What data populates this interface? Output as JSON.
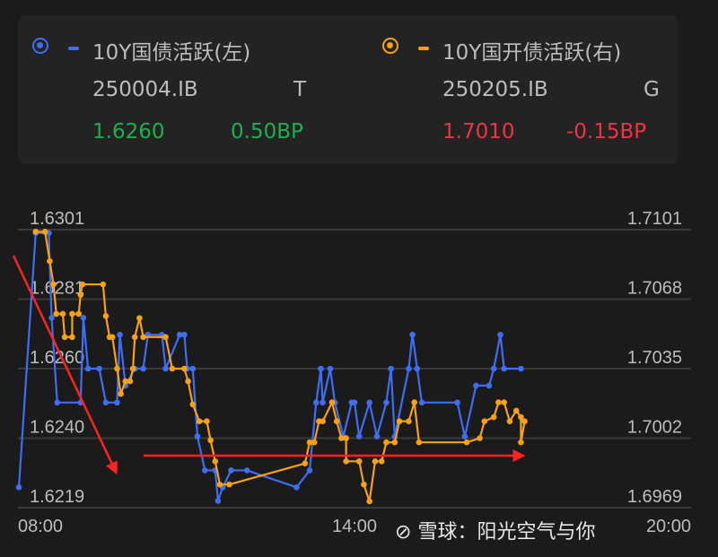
{
  "legend": [
    {
      "name": "10Y国债活跃(左)",
      "code": "250004.IB",
      "tag": "T",
      "value": "1.6260",
      "change": "0.50BP",
      "color": "#3f6df3",
      "value_color": "#1fae4f"
    },
    {
      "name": "10Y国开债活跃(右)",
      "code": "250205.IB",
      "tag": "G",
      "value": "1.7010",
      "change": "-0.15BP",
      "color": "#f6a116",
      "value_color": "#ee3346"
    }
  ],
  "watermark": "雪球：阳光空气与你",
  "chart_data": {
    "type": "line",
    "x_range": [
      "08:00",
      "20:00"
    ],
    "x_ticks": [
      "08:00",
      "14:00",
      "20:00"
    ],
    "y_left": {
      "range": [
        1.6219,
        1.6301
      ],
      "ticks": [
        "1.6301",
        "1.6281",
        "1.6260",
        "1.6240",
        "1.6219"
      ]
    },
    "y_right": {
      "range": [
        1.6969,
        1.7101
      ],
      "ticks": [
        "1.7101",
        "1.7068",
        "1.7035",
        "1.7002",
        "1.6969"
      ]
    },
    "grid": true,
    "markers": true,
    "annotations": [
      {
        "type": "arrow",
        "color": "#ff2020",
        "direction": "down-right"
      },
      {
        "type": "arrow",
        "color": "#ff2020",
        "direction": "right"
      }
    ],
    "series": [
      {
        "name": "10Y国债活跃(左)",
        "axis": "left",
        "color": "#3f6df3",
        "points": [
          [
            "08:01",
            1.6225
          ],
          [
            "08:19",
            1.63
          ],
          [
            "08:33",
            1.63
          ],
          [
            "08:36",
            1.6275
          ],
          [
            "08:42",
            1.625
          ],
          [
            "09:07",
            1.625
          ],
          [
            "09:10",
            1.6275
          ],
          [
            "09:15",
            1.626
          ],
          [
            "09:27",
            1.626
          ],
          [
            "09:34",
            1.625
          ],
          [
            "09:46",
            1.625
          ],
          [
            "09:49",
            1.627
          ],
          [
            "09:55",
            1.6255
          ],
          [
            "10:05",
            1.626
          ],
          [
            "10:14",
            1.626
          ],
          [
            "10:19",
            1.627
          ],
          [
            "10:34",
            1.627
          ],
          [
            "10:38",
            1.626
          ],
          [
            "10:53",
            1.627
          ],
          [
            "10:58",
            1.627
          ],
          [
            "11:01",
            1.626
          ],
          [
            "11:07",
            1.626
          ],
          [
            "11:12",
            1.624
          ],
          [
            "11:20",
            1.623
          ],
          [
            "11:31",
            1.623
          ],
          [
            "11:34",
            1.6221
          ],
          [
            "11:39",
            1.6225
          ],
          [
            "11:48",
            1.623
          ],
          [
            "12:05",
            1.623
          ],
          [
            "12:58",
            1.6225
          ],
          [
            "13:12",
            1.623
          ],
          [
            "13:19",
            1.625
          ],
          [
            "13:24",
            1.626
          ],
          [
            "13:26",
            1.625
          ],
          [
            "13:34",
            1.626
          ],
          [
            "13:39",
            1.625
          ],
          [
            "13:48",
            1.624
          ],
          [
            "13:57",
            1.625
          ],
          [
            "14:00",
            1.625
          ],
          [
            "14:05",
            1.624
          ],
          [
            "14:16",
            1.625
          ],
          [
            "14:24",
            1.624
          ],
          [
            "14:34",
            1.625
          ],
          [
            "14:39",
            1.626
          ],
          [
            "14:43",
            1.624
          ],
          [
            "14:58",
            1.626
          ],
          [
            "15:02",
            1.627
          ],
          [
            "15:07",
            1.626
          ],
          [
            "15:12",
            1.625
          ],
          [
            "15:50",
            1.625
          ],
          [
            "15:58",
            1.624
          ],
          [
            "16:10",
            1.6255
          ],
          [
            "16:24",
            1.6255
          ],
          [
            "16:29",
            1.626
          ],
          [
            "16:36",
            1.627
          ],
          [
            "16:40",
            1.626
          ],
          [
            "16:58",
            1.626
          ]
        ]
      },
      {
        "name": "10Y国开债活跃(右)",
        "axis": "right",
        "color": "#f6a116",
        "points": [
          [
            "08:19",
            1.71
          ],
          [
            "08:29",
            1.71
          ],
          [
            "08:34",
            1.7086
          ],
          [
            "08:38",
            1.7075
          ],
          [
            "08:41",
            1.7061
          ],
          [
            "08:48",
            1.7061
          ],
          [
            "08:50",
            1.705
          ],
          [
            "08:58",
            1.705
          ],
          [
            "08:58",
            1.7061
          ],
          [
            "09:05",
            1.7061
          ],
          [
            "09:07",
            1.707
          ],
          [
            "09:09",
            1.7075
          ],
          [
            "09:31",
            1.7075
          ],
          [
            "09:34",
            1.706
          ],
          [
            "09:38",
            1.705
          ],
          [
            "09:41",
            1.705
          ],
          [
            "09:46",
            1.7035
          ],
          [
            "09:50",
            1.7023
          ],
          [
            "09:55",
            1.7029
          ],
          [
            "10:00",
            1.7029
          ],
          [
            "10:03",
            1.7035
          ],
          [
            "10:05",
            1.705
          ],
          [
            "10:10",
            1.7059
          ],
          [
            "10:14",
            1.705
          ],
          [
            "10:38",
            1.705
          ],
          [
            "10:45",
            1.7035
          ],
          [
            "10:58",
            1.7035
          ],
          [
            "11:02",
            1.7029
          ],
          [
            "11:07",
            1.7018
          ],
          [
            "11:14",
            1.701
          ],
          [
            "11:22",
            1.701
          ],
          [
            "11:26",
            1.7001
          ],
          [
            "11:31",
            1.6991
          ],
          [
            "11:36",
            1.698
          ],
          [
            "11:46",
            1.698
          ],
          [
            "13:07",
            1.699
          ],
          [
            "13:12",
            1.7
          ],
          [
            "13:17",
            1.7
          ],
          [
            "13:22",
            1.701
          ],
          [
            "13:26",
            1.701
          ],
          [
            "13:36",
            1.7019
          ],
          [
            "13:41",
            1.701
          ],
          [
            "13:46",
            1.7002
          ],
          [
            "13:51",
            1.7002
          ],
          [
            "13:51",
            1.6991
          ],
          [
            "14:05",
            1.6991
          ],
          [
            "14:10",
            1.698
          ],
          [
            "14:16",
            1.6972
          ],
          [
            "14:22",
            1.6991
          ],
          [
            "14:29",
            1.6991
          ],
          [
            "14:34",
            1.7
          ],
          [
            "14:43",
            1.7
          ],
          [
            "14:48",
            1.701
          ],
          [
            "14:58",
            1.701
          ],
          [
            "15:04",
            1.7019
          ],
          [
            "15:09",
            1.7
          ],
          [
            "16:00",
            1.7
          ],
          [
            "16:14",
            1.7002
          ],
          [
            "16:19",
            1.701
          ],
          [
            "16:29",
            1.7012
          ],
          [
            "16:34",
            1.7019
          ],
          [
            "16:40",
            1.7019
          ],
          [
            "16:46",
            1.701
          ],
          [
            "16:53",
            1.7015
          ],
          [
            "16:58",
            1.7012
          ],
          [
            "16:58",
            1.7
          ],
          [
            "17:02",
            1.701
          ]
        ]
      }
    ]
  }
}
